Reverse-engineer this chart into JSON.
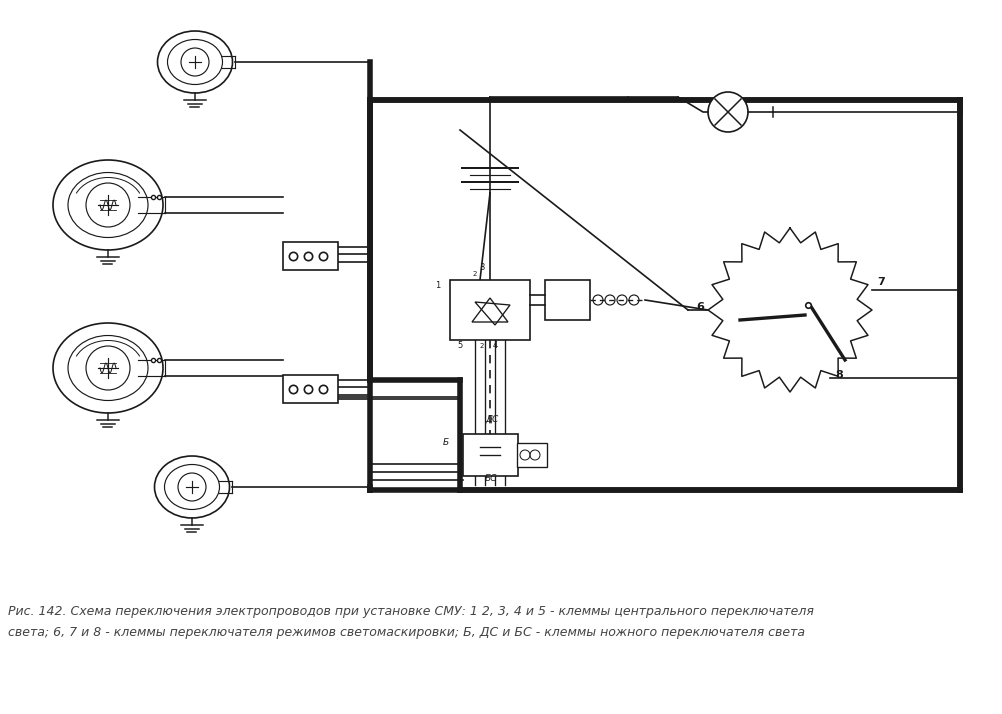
{
  "caption_line1": "Рис. 142. Схема переключения электропроводов при установке СМУ: 1 2, 3, 4 и 5 - клеммы центрального переключателя",
  "caption_line2": "света; 6, 7 и 8 - клеммы переключателя режимов светомаскировки; Б, ДС и БС - клеммы ножного переключателя света",
  "bg_color": "#ffffff",
  "line_color": "#1a1a1a",
  "caption_color": "#444444",
  "caption_fontsize": 9.0,
  "fig_width": 10.02,
  "fig_height": 7.14
}
